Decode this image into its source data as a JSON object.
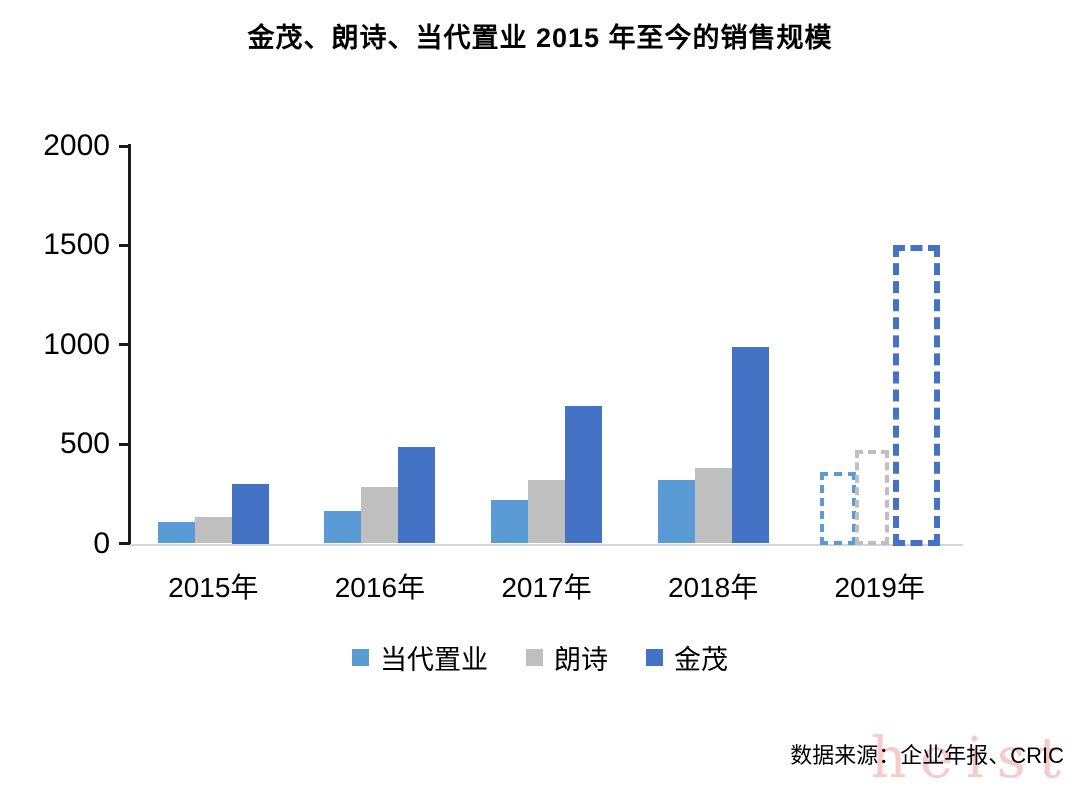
{
  "chart_data": {
    "type": "bar",
    "title": "金茂、朗诗、当代置业 2015 年至今的销售规模",
    "categories": [
      "2015年",
      "2016年",
      "2017年",
      "2018年",
      "2019年"
    ],
    "series": [
      {
        "name": "当代置业",
        "color": "#5B9BD5",
        "values": [
          110,
          165,
          220,
          320,
          360
        ]
      },
      {
        "name": "朗诗",
        "color": "#BFBFBF",
        "values": [
          135,
          285,
          320,
          380,
          470
        ]
      },
      {
        "name": "金茂",
        "color": "#4472C4",
        "values": [
          300,
          485,
          690,
          990,
          1500
        ]
      }
    ],
    "ylim": [
      0,
      2000
    ],
    "yticks": [
      0,
      500,
      1000,
      1500,
      2000
    ],
    "dashed_categories": [
      "2019年"
    ],
    "legend_position": "bottom",
    "grid": false,
    "axis_color": "#1a1a1a",
    "baseline_color": "#d6d6d6"
  },
  "source_note": "数据来源：企业年报、CRIC",
  "watermark": "heist"
}
